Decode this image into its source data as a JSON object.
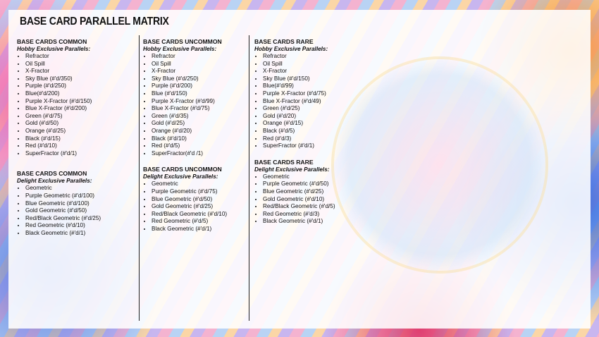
{
  "title": "BASE CARD PARALLEL MATRIX",
  "columns": [
    {
      "sections": [
        {
          "heading": "BASE CARDS COMMON",
          "subheading": "Hobby Exclusive Parallels:",
          "items": [
            "Refractor",
            "Oil Spill",
            "X-Fractor",
            "Sky Blue (#'d/350)",
            "Purple (#'d/250)",
            "Blue(#'d/200)",
            "Purple X-Fractor (#'d/150)",
            "Blue X-Fractor (#'d/200)",
            "Green (#'d/75)",
            "Gold (#'d/50)",
            "Orange (#'d/25)",
            "Black (#'d/15)",
            "Red (#'d/10)",
            "SuperFractor (#'d/1)"
          ]
        },
        {
          "heading": "BASE CARDS COMMON",
          "subheading": "Delight Exclusive Parallels:",
          "items": [
            "Geometric",
            "Purple Geometric (#'d/100)",
            "Blue Geometric (#'d/100)",
            "Gold Geometric (#'d/50)",
            "Red/Black Geometric (#'d/25)",
            "Red Geometric (#'d/10)",
            "Black Geometric (#'d/1)"
          ]
        }
      ]
    },
    {
      "sections": [
        {
          "heading": "BASE CARDS UNCOMMON",
          "subheading": "Hobby Exclusive Parallels:",
          "items": [
            "Refractor",
            "Oil Spill",
            "X-Fractor",
            "Sky Blue (#'d/250)",
            "Purple (#'d/200)",
            "Blue (#'d/150)",
            "Purple X-Fractor (#'d/99)",
            "Blue X-Fractor (#'d/75)",
            "Green (#'d/35)",
            "Gold (#'d/25)",
            "Orange (#'d/20)",
            "Black (#'d/10)",
            "Red (#'d/5)",
            "SuperFractor(#'d /1)"
          ]
        },
        {
          "heading": "BASE CARDS UNCOMMON",
          "subheading": "Delight Exclusive Parallels:",
          "items": [
            "Geometric",
            "Purple Geometric (#'d/75)",
            "Blue Geometric (#'d/50)",
            "Gold Geometric (#'d/25)",
            "Red/Black Geometric (#'d/10)",
            "Red Geometric (#'d/5)",
            "Black Geometric (#'d/1)"
          ]
        }
      ]
    },
    {
      "sections": [
        {
          "heading": "BASE CARDS RARE",
          "subheading": "Hobby Exclusive Parallels:",
          "items": [
            "Refractor",
            "Oil Spill",
            "X-Fractor",
            "Sky Blue (#'d/150)",
            "Blue(#'d/99)",
            "Purple X-Fractor (#'d/75)",
            "Blue X-Fractor (#'d/49)",
            "Green (#'d/25)",
            "Gold (#'d/20)",
            "Orange (#'d/15)",
            "Black (#'d/5)",
            "Red (#'d/3)",
            "SuperFractor (#'d/1)"
          ]
        },
        {
          "heading": "BASE CARDS RARE",
          "subheading": "Delight Exclusive Parallels:",
          "items": [
            "Geometric",
            "Purple Geometric (#'d/50)",
            "Blue Geometric (#'d/25)",
            "Gold Geometric (#'d/10)",
            "Red/Black Geometric (#'d/5)",
            "Red Geometric (#'d/3)",
            "Black Geometric (#'d/1)"
          ]
        }
      ]
    }
  ]
}
